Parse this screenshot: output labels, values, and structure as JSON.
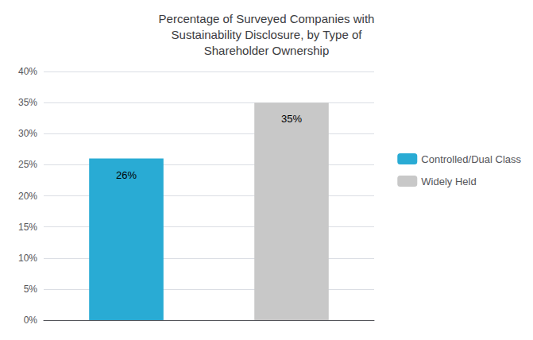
{
  "chart_data": {
    "type": "bar",
    "title": "Percentage of Surveyed Companies with\nSustainability Disclosure, by Type of\nShareholder Ownership",
    "categories": [
      "Controlled/Dual Class",
      "Widely Held"
    ],
    "values": [
      0.26,
      0.35
    ],
    "value_labels": [
      "26%",
      "35%"
    ],
    "colors": [
      "#29ABD4",
      "#C8C8C8"
    ],
    "ylim": [
      0,
      0.4
    ],
    "yticks": [
      {
        "value": 0.0,
        "label": "0%"
      },
      {
        "value": 0.05,
        "label": "5%"
      },
      {
        "value": 0.1,
        "label": "10%"
      },
      {
        "value": 0.15,
        "label": "15%"
      },
      {
        "value": 0.2,
        "label": "20%"
      },
      {
        "value": 0.25,
        "label": "25%"
      },
      {
        "value": 0.3,
        "label": "30%"
      },
      {
        "value": 0.35,
        "label": "35%"
      },
      {
        "value": 0.4,
        "label": "40%"
      }
    ],
    "grid": true,
    "legend": "right",
    "data_labels": true,
    "tick_labels": "y"
  }
}
